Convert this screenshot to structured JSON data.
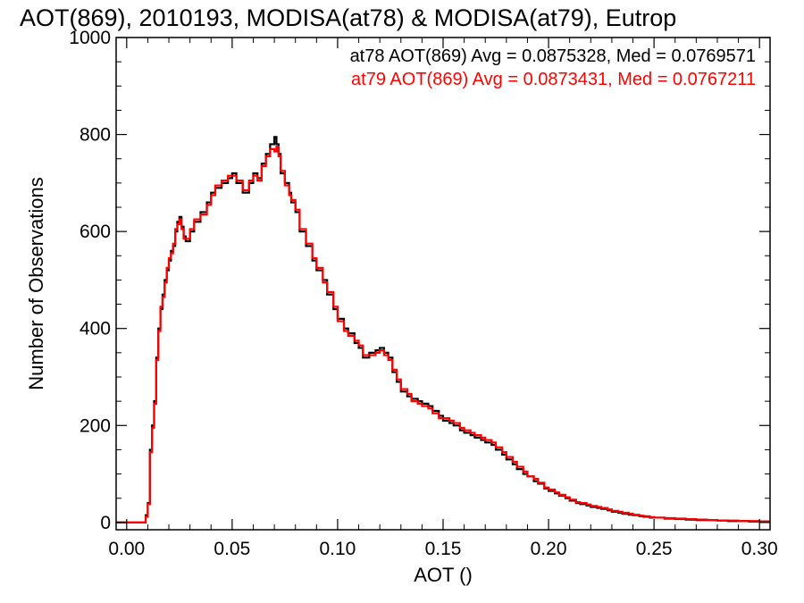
{
  "chart_data": {
    "type": "line",
    "style": "step-histogram",
    "title": "AOT(869), 2010193, MODISA(at78) & MODISA(at79), Eutrop",
    "xlabel": "AOT ()",
    "ylabel": "Number of Observations",
    "xlim": [
      -0.005,
      0.305
    ],
    "ylim": [
      -15,
      1000
    ],
    "xticks": [
      0.0,
      0.05,
      0.1,
      0.15,
      0.2,
      0.25,
      0.3
    ],
    "xtick_labels": [
      "0.00",
      "0.05",
      "0.10",
      "0.15",
      "0.20",
      "0.25",
      "0.30"
    ],
    "yticks": [
      0,
      200,
      400,
      600,
      800,
      1000
    ],
    "ytick_labels": [
      "0",
      "200",
      "400",
      "600",
      "800",
      "1000"
    ],
    "grid": false,
    "legend_position": "top-right",
    "series": [
      {
        "name": "at78",
        "color": "#000000",
        "legend": "at78 AOT(869) Avg = 0.0875328, Med = 0.0769571",
        "x": [
          -0.005,
          0.008,
          0.009,
          0.01,
          0.011,
          0.012,
          0.013,
          0.014,
          0.015,
          0.016,
          0.017,
          0.018,
          0.019,
          0.02,
          0.021,
          0.022,
          0.023,
          0.024,
          0.025,
          0.026,
          0.027,
          0.028,
          0.03,
          0.032,
          0.035,
          0.038,
          0.04,
          0.042,
          0.045,
          0.048,
          0.05,
          0.052,
          0.055,
          0.058,
          0.06,
          0.062,
          0.064,
          0.066,
          0.068,
          0.07,
          0.071,
          0.072,
          0.073,
          0.075,
          0.077,
          0.078,
          0.08,
          0.082,
          0.085,
          0.088,
          0.09,
          0.093,
          0.095,
          0.098,
          0.1,
          0.103,
          0.105,
          0.108,
          0.11,
          0.112,
          0.115,
          0.118,
          0.12,
          0.122,
          0.124,
          0.126,
          0.128,
          0.13,
          0.133,
          0.135,
          0.138,
          0.14,
          0.143,
          0.145,
          0.148,
          0.15,
          0.153,
          0.155,
          0.158,
          0.16,
          0.163,
          0.165,
          0.168,
          0.17,
          0.173,
          0.175,
          0.178,
          0.18,
          0.183,
          0.185,
          0.188,
          0.19,
          0.193,
          0.195,
          0.198,
          0.2,
          0.203,
          0.205,
          0.208,
          0.21,
          0.213,
          0.215,
          0.218,
          0.22,
          0.223,
          0.225,
          0.228,
          0.23,
          0.233,
          0.235,
          0.238,
          0.24,
          0.243,
          0.245,
          0.248,
          0.25,
          0.255,
          0.26,
          0.265,
          0.27,
          0.275,
          0.28,
          0.285,
          0.29,
          0.295,
          0.3,
          0.305
        ],
        "y": [
          0,
          0,
          15,
          40,
          150,
          200,
          250,
          340,
          400,
          440,
          470,
          500,
          520,
          540,
          560,
          570,
          600,
          620,
          630,
          610,
          590,
          580,
          600,
          620,
          640,
          660,
          680,
          690,
          700,
          710,
          720,
          700,
          680,
          700,
          720,
          710,
          740,
          760,
          780,
          795,
          780,
          760,
          720,
          700,
          680,
          660,
          640,
          600,
          570,
          540,
          520,
          500,
          470,
          440,
          420,
          400,
          390,
          370,
          360,
          340,
          350,
          355,
          360,
          350,
          340,
          310,
          290,
          270,
          260,
          255,
          250,
          245,
          240,
          230,
          220,
          210,
          205,
          200,
          190,
          185,
          180,
          175,
          170,
          165,
          160,
          150,
          140,
          130,
          120,
          110,
          100,
          95,
          85,
          80,
          70,
          65,
          60,
          55,
          50,
          45,
          40,
          38,
          35,
          32,
          30,
          28,
          25,
          22,
          20,
          18,
          16,
          15,
          13,
          12,
          10,
          10,
          8,
          7,
          6,
          5,
          5,
          4,
          3,
          3,
          2,
          2,
          2
        ]
      },
      {
        "name": "at79",
        "color": "#ff0000",
        "legend": "at79 AOT(869) Avg = 0.0873431, Med = 0.0767211",
        "x": [
          -0.005,
          0.008,
          0.009,
          0.01,
          0.011,
          0.012,
          0.013,
          0.014,
          0.015,
          0.016,
          0.017,
          0.018,
          0.019,
          0.02,
          0.021,
          0.022,
          0.023,
          0.024,
          0.025,
          0.026,
          0.027,
          0.028,
          0.03,
          0.032,
          0.035,
          0.038,
          0.04,
          0.042,
          0.045,
          0.048,
          0.05,
          0.052,
          0.055,
          0.058,
          0.06,
          0.062,
          0.064,
          0.066,
          0.068,
          0.07,
          0.071,
          0.072,
          0.073,
          0.075,
          0.077,
          0.078,
          0.08,
          0.082,
          0.085,
          0.088,
          0.09,
          0.093,
          0.095,
          0.098,
          0.1,
          0.103,
          0.105,
          0.108,
          0.11,
          0.112,
          0.115,
          0.118,
          0.12,
          0.122,
          0.124,
          0.126,
          0.128,
          0.13,
          0.133,
          0.135,
          0.138,
          0.14,
          0.143,
          0.145,
          0.148,
          0.15,
          0.153,
          0.155,
          0.158,
          0.16,
          0.163,
          0.165,
          0.168,
          0.17,
          0.173,
          0.175,
          0.178,
          0.18,
          0.183,
          0.185,
          0.188,
          0.19,
          0.193,
          0.195,
          0.198,
          0.2,
          0.203,
          0.205,
          0.208,
          0.21,
          0.213,
          0.215,
          0.218,
          0.22,
          0.223,
          0.225,
          0.228,
          0.23,
          0.233,
          0.235,
          0.238,
          0.24,
          0.243,
          0.245,
          0.248,
          0.25,
          0.255,
          0.26,
          0.265,
          0.27,
          0.275,
          0.28,
          0.285,
          0.29,
          0.295,
          0.3,
          0.305
        ],
        "y": [
          0,
          0,
          12,
          38,
          145,
          195,
          245,
          335,
          395,
          445,
          465,
          495,
          525,
          545,
          555,
          575,
          605,
          615,
          625,
          605,
          585,
          585,
          605,
          625,
          635,
          655,
          675,
          695,
          705,
          715,
          715,
          705,
          685,
          705,
          715,
          705,
          735,
          755,
          770,
          765,
          775,
          755,
          725,
          695,
          675,
          665,
          645,
          605,
          575,
          545,
          525,
          495,
          475,
          445,
          415,
          395,
          385,
          375,
          365,
          345,
          345,
          350,
          355,
          345,
          335,
          315,
          295,
          275,
          265,
          250,
          245,
          240,
          235,
          225,
          215,
          215,
          210,
          205,
          195,
          190,
          185,
          180,
          175,
          170,
          165,
          155,
          145,
          135,
          125,
          115,
          105,
          95,
          90,
          82,
          72,
          68,
          62,
          57,
          52,
          47,
          42,
          40,
          37,
          34,
          32,
          30,
          27,
          24,
          22,
          20,
          18,
          16,
          14,
          13,
          11,
          10,
          9,
          8,
          7,
          6,
          5,
          4,
          4,
          3,
          3,
          2,
          2
        ]
      }
    ]
  }
}
